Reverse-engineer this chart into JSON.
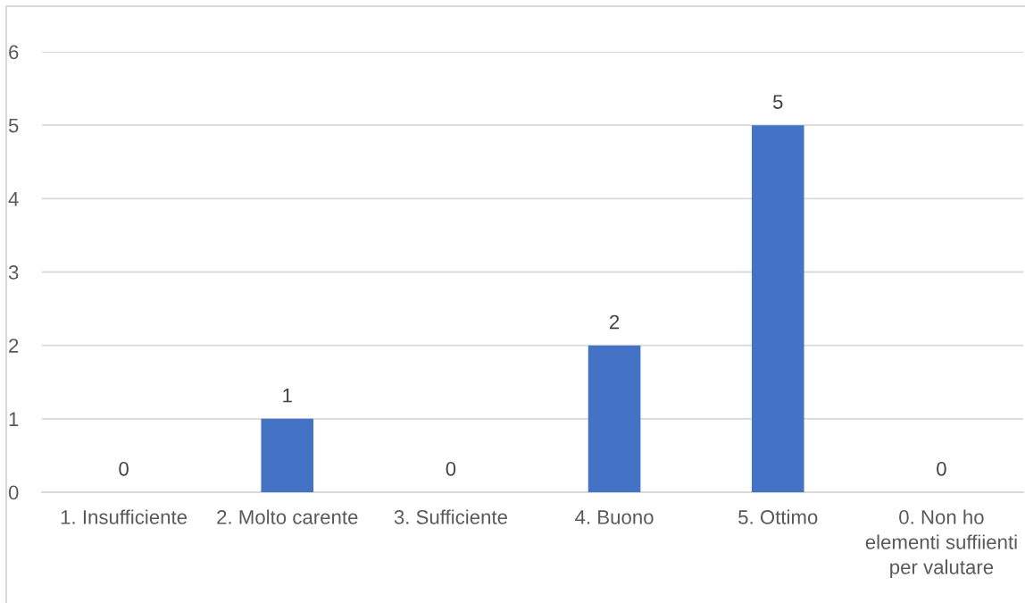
{
  "chart_data": {
    "type": "bar",
    "categories": [
      "1. Insufficiente",
      "2. Molto carente",
      "3. Sufficiente",
      "4. Buono",
      "5. Ottimo",
      "0. Non ho elementi suffiienti per valutare"
    ],
    "values": [
      0,
      1,
      0,
      2,
      5,
      0
    ],
    "color": "#4472c4",
    "ylim": [
      0,
      6
    ],
    "yticks": [
      0,
      1,
      2,
      3,
      4,
      5,
      6
    ],
    "grid": "y",
    "data_labels": true
  }
}
